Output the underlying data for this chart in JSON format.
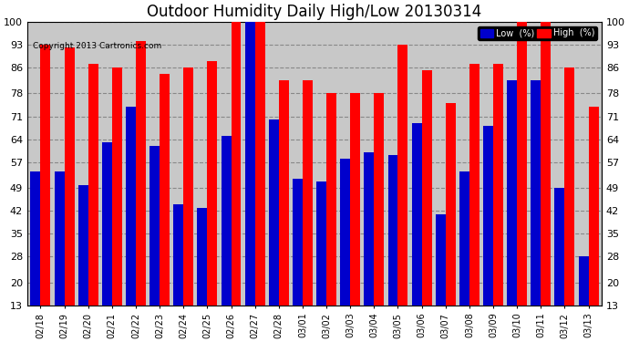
{
  "title": "Outdoor Humidity Daily High/Low 20130314",
  "copyright": "Copyright 2013 Cartronics.com",
  "categories": [
    "02/18",
    "02/19",
    "02/20",
    "02/21",
    "02/22",
    "02/23",
    "02/24",
    "02/25",
    "02/26",
    "02/27",
    "02/28",
    "03/01",
    "03/02",
    "03/03",
    "03/04",
    "03/05",
    "03/06",
    "03/07",
    "03/08",
    "03/09",
    "03/10",
    "03/11",
    "03/12",
    "03/13"
  ],
  "high": [
    93,
    92,
    87,
    86,
    94,
    84,
    86,
    88,
    100,
    100,
    82,
    82,
    78,
    78,
    78,
    93,
    85,
    75,
    87,
    87,
    100,
    100,
    86,
    74
  ],
  "low": [
    54,
    54,
    50,
    63,
    74,
    62,
    44,
    43,
    65,
    100,
    70,
    52,
    51,
    58,
    60,
    59,
    69,
    41,
    54,
    68,
    82,
    82,
    49,
    28
  ],
  "high_color": "#ff0000",
  "low_color": "#0000cc",
  "bg_color": "#ffffff",
  "plot_bg": "#c8c8c8",
  "grid_color": "#888888",
  "yticks": [
    13,
    20,
    28,
    35,
    42,
    49,
    57,
    64,
    71,
    78,
    86,
    93,
    100
  ],
  "ymin": 13,
  "ymax": 100,
  "title_fontsize": 12,
  "legend_low_label": "Low  (%)",
  "legend_high_label": "High  (%)"
}
